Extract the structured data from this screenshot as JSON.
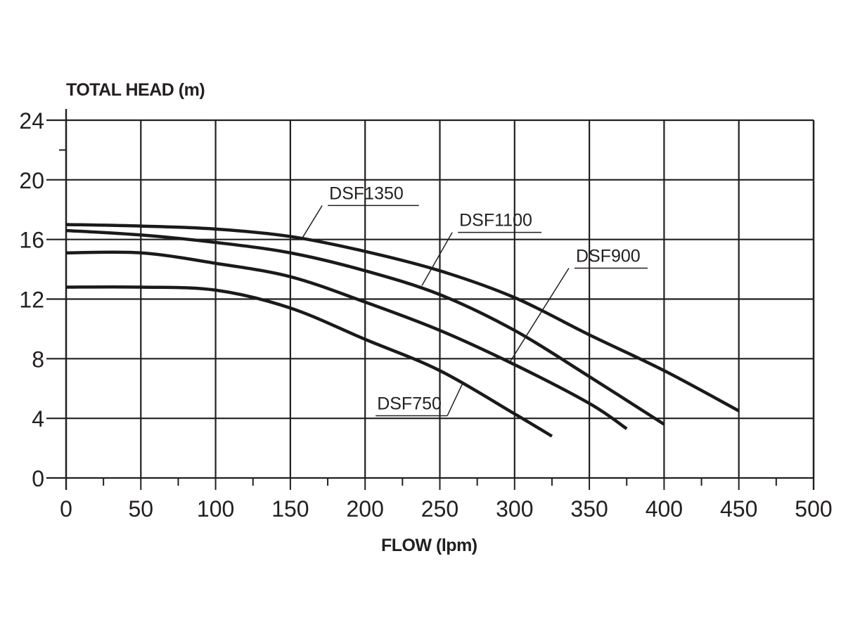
{
  "chart_data": {
    "type": "line",
    "title": "",
    "xlabel": "FLOW (lpm)",
    "ylabel": "TOTAL HEAD (m)",
    "xlim": [
      0,
      500
    ],
    "ylim": [
      0,
      24
    ],
    "x_ticks": [
      0,
      50,
      100,
      150,
      200,
      250,
      300,
      350,
      400,
      450,
      500
    ],
    "y_ticks": [
      0,
      4,
      8,
      12,
      16,
      20,
      24
    ],
    "x_minor_ticks": [
      25,
      75,
      125,
      175,
      225,
      275,
      325,
      375,
      425,
      475
    ],
    "y_minor_ticks": [
      22
    ],
    "grid": true,
    "legend": "inline leader-line labels",
    "series": [
      {
        "name": "DSF1350",
        "x": [
          0,
          50,
          100,
          150,
          200,
          250,
          300,
          350,
          400,
          450
        ],
        "values": [
          17.0,
          16.9,
          16.7,
          16.2,
          15.2,
          13.9,
          12.1,
          9.6,
          7.2,
          4.5
        ],
        "label_pos": {
          "text_x": 176,
          "text_y": 18.7,
          "line_end_x": 236,
          "leader_to_x": 158,
          "leader_to_y": 16.1
        }
      },
      {
        "name": "DSF1100",
        "x": [
          0,
          50,
          100,
          150,
          200,
          250,
          300,
          350,
          400
        ],
        "values": [
          16.6,
          16.3,
          15.8,
          15.1,
          13.9,
          12.3,
          9.9,
          6.8,
          3.6
        ],
        "label_pos": {
          "text_x": 263,
          "text_y": 16.9,
          "line_end_x": 318,
          "leader_to_x": 238,
          "leader_to_y": 12.9
        }
      },
      {
        "name": "DSF900",
        "x": [
          0,
          50,
          100,
          150,
          200,
          250,
          300,
          350,
          375
        ],
        "values": [
          15.1,
          15.1,
          14.4,
          13.5,
          11.8,
          9.9,
          7.6,
          5.0,
          3.3
        ],
        "label_pos": {
          "text_x": 341,
          "text_y": 14.5,
          "line_end_x": 389,
          "leader_to_x": 297,
          "leader_to_y": 7.8
        }
      },
      {
        "name": "DSF750",
        "x": [
          0,
          50,
          100,
          150,
          200,
          250,
          300,
          325
        ],
        "values": [
          12.8,
          12.8,
          12.6,
          11.4,
          9.3,
          7.2,
          4.3,
          2.8
        ],
        "label_pos": {
          "text_x": 208,
          "text_y": 4.6,
          "line_end_x": 255,
          "leader_to_x": 265,
          "leader_to_y": 6.3
        }
      }
    ]
  }
}
